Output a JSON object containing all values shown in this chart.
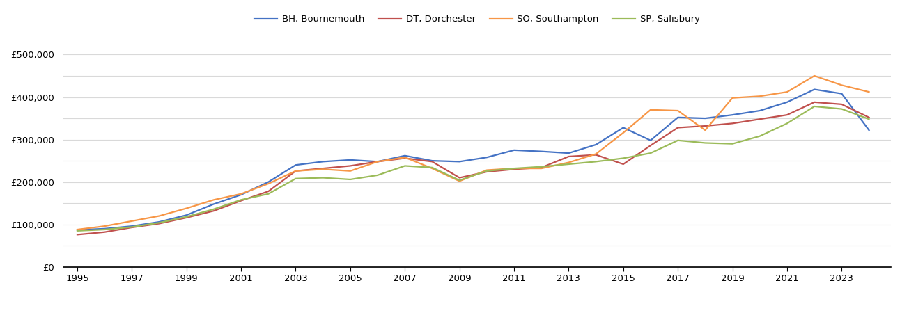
{
  "years": [
    1995,
    1996,
    1997,
    1998,
    1999,
    2000,
    2001,
    2002,
    2003,
    2004,
    2005,
    2006,
    2007,
    2008,
    2009,
    2010,
    2011,
    2012,
    2013,
    2014,
    2015,
    2016,
    2017,
    2018,
    2019,
    2020,
    2021,
    2022,
    2023,
    2024
  ],
  "BH_Bournemouth": [
    87000,
    90000,
    96000,
    106000,
    122000,
    148000,
    170000,
    200000,
    240000,
    248000,
    252000,
    248000,
    262000,
    250000,
    248000,
    258000,
    275000,
    272000,
    268000,
    288000,
    328000,
    298000,
    352000,
    350000,
    358000,
    368000,
    388000,
    418000,
    408000,
    322000
  ],
  "DT_Dorchester": [
    76000,
    82000,
    93000,
    102000,
    116000,
    132000,
    156000,
    178000,
    226000,
    232000,
    238000,
    248000,
    256000,
    248000,
    210000,
    224000,
    230000,
    234000,
    260000,
    264000,
    242000,
    286000,
    328000,
    332000,
    338000,
    348000,
    358000,
    388000,
    383000,
    352000
  ],
  "SO_Southampton": [
    88000,
    96000,
    108000,
    120000,
    138000,
    158000,
    172000,
    196000,
    226000,
    230000,
    226000,
    248000,
    258000,
    232000,
    202000,
    228000,
    232000,
    232000,
    246000,
    266000,
    316000,
    370000,
    368000,
    322000,
    398000,
    402000,
    412000,
    450000,
    428000,
    412000
  ],
  "SP_Salisbury": [
    85000,
    88000,
    94000,
    104000,
    118000,
    136000,
    158000,
    172000,
    208000,
    210000,
    206000,
    216000,
    238000,
    234000,
    204000,
    226000,
    232000,
    236000,
    242000,
    248000,
    256000,
    268000,
    298000,
    292000,
    290000,
    308000,
    338000,
    378000,
    372000,
    348000
  ],
  "colors": {
    "BH_Bournemouth": "#4472c4",
    "DT_Dorchester": "#c0504d",
    "SO_Southampton": "#f79646",
    "SP_Salisbury": "#9bbb59"
  },
  "labels": {
    "BH_Bournemouth": "BH, Bournemouth",
    "DT_Dorchester": "DT, Dorchester",
    "SO_Southampton": "SO, Southampton",
    "SP_Salisbury": "SP, Salisbury"
  },
  "ylim": [
    -20000,
    540000
  ],
  "yticks": [
    0,
    100000,
    200000,
    300000,
    400000,
    500000
  ],
  "yticks_minor": [
    50000,
    150000,
    250000,
    350000,
    450000
  ],
  "xticks": [
    1995,
    1997,
    1999,
    2001,
    2003,
    2005,
    2007,
    2009,
    2011,
    2013,
    2015,
    2017,
    2019,
    2021,
    2023
  ],
  "background_color": "#ffffff",
  "grid_color": "#d9d9d9"
}
